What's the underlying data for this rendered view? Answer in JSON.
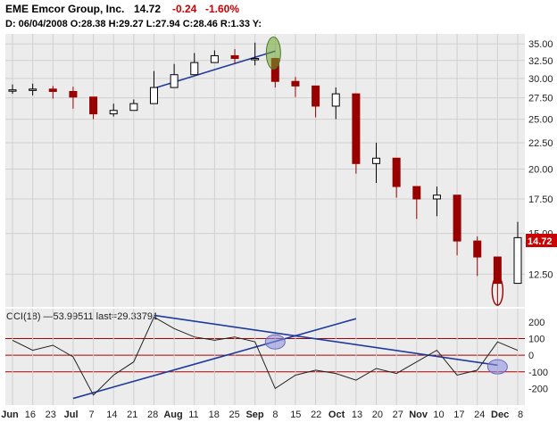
{
  "header": {
    "symbol_name": "EME Emcor Group, Inc.",
    "last": "14.72",
    "change": "-0.24",
    "change_pct": "-1.60%",
    "ohlc_line": "D: 06/04/2008 O:28.38 H:29.27 L:27.94 C:28.46 R:1.33 Y:"
  },
  "price_panel": {
    "last_tag": "14.72",
    "y_ticks": [
      "35.00",
      "32.50",
      "30.00",
      "27.50",
      "25.00",
      "22.50",
      "20.00",
      "17.50",
      "15.00",
      "12.50"
    ],
    "y_tick_values": [
      35,
      32.5,
      30,
      27.5,
      25,
      22.5,
      20,
      17.5,
      15,
      12.5
    ]
  },
  "cci_panel": {
    "label": "CCI(18) —53.99511 last=29.33791",
    "y_ticks": [
      "200",
      "100",
      "0",
      "-100",
      "-200"
    ],
    "y_tick_values": [
      200,
      100,
      0,
      -100,
      -200
    ],
    "bands": [
      100,
      0,
      -100
    ]
  },
  "x_axis": {
    "labels": [
      "Jun",
      "16",
      "23",
      "Jul",
      "7",
      "14",
      "21",
      "28",
      "Aug",
      "11",
      "18",
      "25",
      "Sep",
      "8",
      "15",
      "22",
      "Oct",
      "13",
      "20",
      "27",
      "Nov",
      "10",
      "17",
      "24",
      "Dec",
      "8"
    ],
    "bold": [
      "Jun",
      "Jul",
      "Aug",
      "Sep",
      "Oct",
      "Nov",
      "Dec"
    ]
  },
  "colors": {
    "up": "#000000",
    "down": "#990000",
    "grid": "#d0d0d0",
    "panel_bg": "#ececec",
    "cci_band": "#aa0000",
    "trendline": "#1f3a9e",
    "price_tag_bg": "#cc0000",
    "highlight_green": "#6ea830",
    "highlight_blue": "#8c8ce0"
  },
  "chart_data": [
    {
      "type": "candlestick",
      "title": "EME Emcor Group, Inc.",
      "ylim": [
        10.8,
        36.6
      ],
      "y_scale": "log",
      "x": [
        "Jun 9",
        "Jun 16",
        "Jun 23",
        "Jul 1",
        "Jul 7",
        "Jul 14",
        "Jul 21",
        "Jul 28",
        "Aug 4",
        "Aug 11",
        "Aug 18",
        "Aug 25",
        "Sep 2",
        "Sep 8",
        "Sep 15",
        "Sep 22",
        "Sep 29",
        "Oct 6",
        "Oct 13",
        "Oct 20",
        "Oct 27",
        "Nov 3",
        "Nov 10",
        "Nov 17",
        "Nov 24",
        "Dec 1"
      ],
      "close": [
        28.5,
        28.6,
        28.3,
        27.6,
        25.6,
        26.0,
        26.8,
        28.8,
        30.5,
        32.2,
        33.2,
        32.8,
        32.8,
        29.6,
        29.0,
        26.5,
        28.0,
        20.5,
        21.0,
        18.5,
        17.5,
        17.8,
        14.5,
        13.5,
        12.0,
        14.72
      ],
      "high": [
        29.2,
        29.3,
        29.0,
        28.9,
        26.8,
        26.8,
        27.3,
        31.0,
        32.0,
        33.6,
        34.0,
        34.2,
        35.2,
        30.8,
        30.2,
        28.8,
        28.8,
        23.5,
        22.5,
        21.0,
        18.4,
        18.5,
        16.0,
        14.8,
        12.8,
        15.8
      ],
      "low": [
        28.0,
        27.8,
        27.4,
        26.2,
        25.0,
        25.3,
        26.2,
        28.4,
        29.6,
        31.4,
        32.3,
        32.0,
        31.8,
        28.8,
        27.6,
        25.2,
        25.0,
        19.6,
        18.8,
        17.6,
        16.0,
        16.2,
        13.6,
        12.4,
        10.9,
        13.6
      ],
      "trendlines": [
        {
          "from": [
            "Jul 28",
            28.7
          ],
          "to": [
            "Sep 8",
            33.9
          ]
        }
      ]
    },
    {
      "type": "line",
      "title": "CCI(18)",
      "ylim": [
        -300,
        280
      ],
      "x": [
        "Jun 9",
        "Jun 16",
        "Jun 23",
        "Jul 1",
        "Jul 7",
        "Jul 14",
        "Jul 21",
        "Jul 28",
        "Aug 4",
        "Aug 11",
        "Aug 18",
        "Aug 25",
        "Sep 2",
        "Sep 8",
        "Sep 15",
        "Sep 22",
        "Sep 29",
        "Oct 6",
        "Oct 13",
        "Oct 20",
        "Oct 27",
        "Nov 3",
        "Nov 10",
        "Nov 17",
        "Nov 24",
        "Dec 1"
      ],
      "series": [
        {
          "values": [
            90,
            30,
            60,
            -10,
            -240,
            -120,
            -40,
            230,
            160,
            110,
            90,
            110,
            80,
            -200,
            -120,
            -90,
            -110,
            -150,
            -80,
            -110,
            -40,
            30,
            -120,
            -90,
            80,
            29.3
          ]
        }
      ],
      "trendlines": [
        {
          "from": [
            "Jul 1",
            -260
          ],
          "to": [
            "Oct 6",
            220
          ]
        },
        {
          "from": [
            "Jul 28",
            240
          ],
          "to": [
            "Nov 24",
            -60
          ]
        }
      ]
    }
  ]
}
